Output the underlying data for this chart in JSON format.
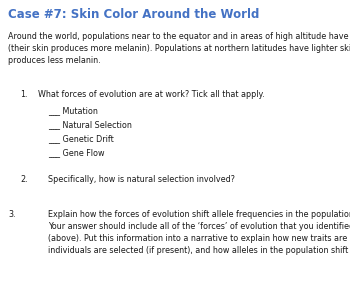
{
  "title": "Case #7: Skin Color Around the World",
  "title_color": "#4472C4",
  "title_fontsize": 8.5,
  "body_fontsize": 5.8,
  "background_color": "#ffffff",
  "intro_text": "Around the world, populations near to the equator and in areas of high altitude have darker skin\n(their skin produces more melanin). Populations at northern latitudes have lighter skin- their skin\nproduces less melanin.",
  "q1_label": "1.",
  "q1_text": "What forces of evolution are at work? Tick all that apply.",
  "checkboxes": [
    "Mutation",
    "Natural Selection",
    "Genetic Drift",
    "Gene Flow"
  ],
  "q2_label": "2.",
  "q2_text": "Specifically, how is natural selection involved?",
  "q3_label": "3.",
  "q3_text": "Explain how the forces of evolution shift allele frequencies in the population over time.\nYour answer should include all of the ‘forces’ of evolution that you identified as being employed\n(above). Put this information into a narrative to explain how new traits are introduced, how\nindividuals are selected (if present), and how alleles in the population shift over time."
}
